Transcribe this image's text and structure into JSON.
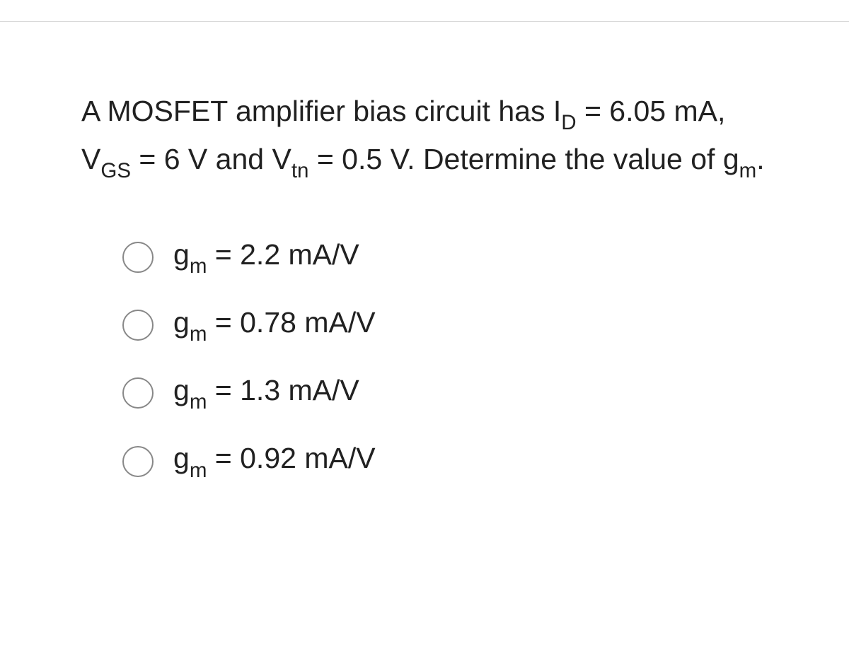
{
  "question": {
    "line1_pre": "A MOSFET amplifier bias circuit has I",
    "line1_sub": "D",
    "line1_post": " = ",
    "line2_v1": "6.05 mA, V",
    "line2_sub1": "GS",
    "line2_mid": " = 6 V and V",
    "line2_sub2": "tn",
    "line2_post": " = 0.5 V. ",
    "line3_pre": "Determine the value of g",
    "line3_sub": "m",
    "line3_post": "."
  },
  "options": [
    {
      "pre": "g",
      "sub": "m",
      "post": " = 2.2 mA/V"
    },
    {
      "pre": "g",
      "sub": "m",
      "post": " = 0.78 mA/V"
    },
    {
      "pre": "g",
      "sub": "m",
      "post": " = 1.3 mA/V"
    },
    {
      "pre": "g",
      "sub": "m",
      "post": " = 0.92 mA/V"
    }
  ],
  "style": {
    "text_color": "#212121",
    "radio_border_color": "#888888",
    "divider_color": "#d8d8d8",
    "background_color": "#ffffff",
    "question_fontsize": 41,
    "option_fontsize": 41
  }
}
